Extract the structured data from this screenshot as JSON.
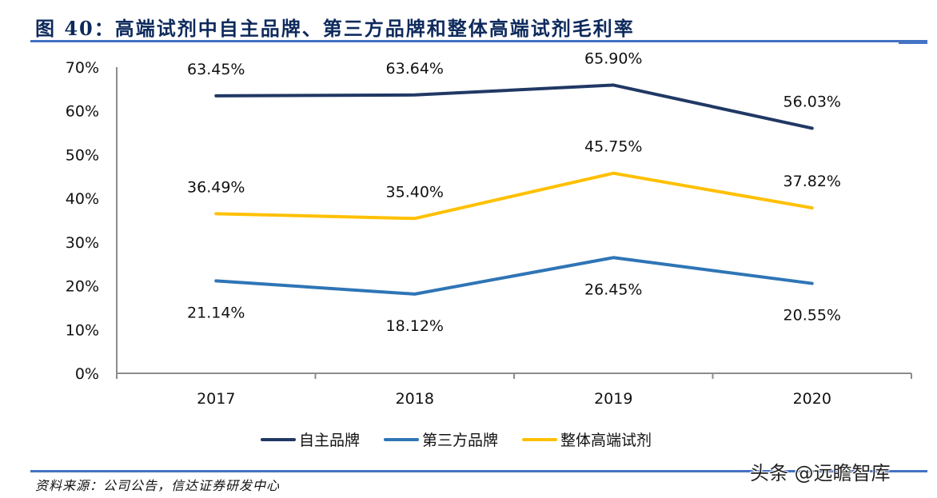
{
  "figure": {
    "title": "图 40：高端试剂中自主品牌、第三方品牌和整体高端试剂毛利率",
    "source": "资料来源：公司公告，信达证券研发中心",
    "watermark": "头条 @远瞻智库"
  },
  "chart_data": {
    "type": "line",
    "title": "图 40：高端试剂中自主品牌、第三方品牌和整体高端试剂毛利率",
    "xlabel": "",
    "ylabel": "",
    "categories": [
      "2017",
      "2018",
      "2019",
      "2020"
    ],
    "ylim": [
      0,
      70
    ],
    "yticks": [
      0,
      10,
      20,
      30,
      40,
      50,
      60,
      70
    ],
    "ytick_labels": [
      "0%",
      "10%",
      "20%",
      "30%",
      "40%",
      "50%",
      "60%",
      "70%"
    ],
    "grid": false,
    "legend_position": "bottom",
    "series": [
      {
        "name": "自主品牌",
        "color": "#203864",
        "values": [
          63.45,
          63.64,
          65.9,
          56.03
        ],
        "labels": [
          "63.45%",
          "63.64%",
          "65.90%",
          "56.03%"
        ],
        "label_position": "above"
      },
      {
        "name": "第三方品牌",
        "color": "#2e75b6",
        "values": [
          21.14,
          18.12,
          26.45,
          20.55
        ],
        "labels": [
          "21.14%",
          "18.12%",
          "26.45%",
          "20.55%"
        ],
        "label_position": "below"
      },
      {
        "name": "整体高端试剂",
        "color": "#ffc000",
        "values": [
          36.49,
          35.4,
          45.75,
          37.82
        ],
        "labels": [
          "36.49%",
          "35.40%",
          "45.75%",
          "37.82%"
        ],
        "label_position": "above"
      }
    ]
  }
}
